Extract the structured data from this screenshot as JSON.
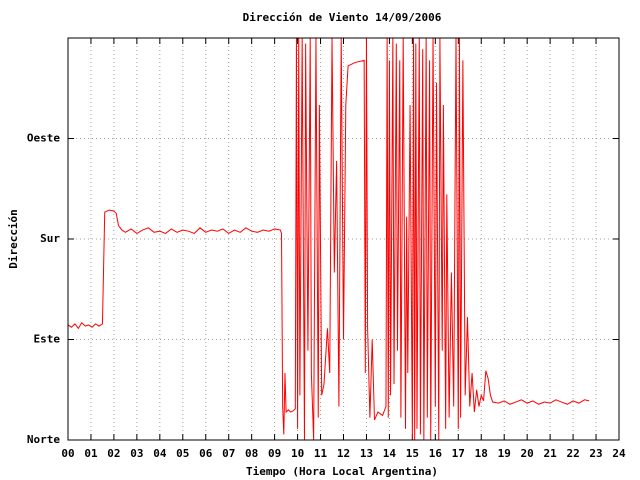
{
  "chart_data": {
    "type": "line",
    "title": "Dirección de Viento 14/09/2006",
    "xlabel": "Tiempo (Hora Local Argentina)",
    "ylabel": "Dirección",
    "grid": true,
    "xlim": [
      0,
      24
    ],
    "ylim": [
      0,
      360
    ],
    "xticks": [
      {
        "value": 0,
        "label": "00"
      },
      {
        "value": 1,
        "label": "01"
      },
      {
        "value": 2,
        "label": "02"
      },
      {
        "value": 3,
        "label": "03"
      },
      {
        "value": 4,
        "label": "04"
      },
      {
        "value": 5,
        "label": "05"
      },
      {
        "value": 6,
        "label": "06"
      },
      {
        "value": 7,
        "label": "07"
      },
      {
        "value": 8,
        "label": "08"
      },
      {
        "value": 9,
        "label": "09"
      },
      10,
      11,
      12,
      13,
      14,
      15,
      16,
      17,
      18,
      19,
      20,
      21,
      22,
      23,
      24
    ],
    "yticks": [
      {
        "value": 0,
        "label": "Norte"
      },
      {
        "value": 90,
        "label": "Este"
      },
      {
        "value": 180,
        "label": "Sur"
      },
      {
        "value": 270,
        "label": "Oeste"
      }
    ],
    "x": [
      0,
      0.15,
      0.3,
      0.45,
      0.6,
      0.75,
      0.9,
      1.05,
      1.2,
      1.35,
      1.5,
      1.6,
      1.8,
      2.0,
      2.1,
      2.2,
      2.35,
      2.5,
      2.75,
      3.0,
      3.25,
      3.5,
      3.75,
      4.0,
      4.25,
      4.5,
      4.75,
      5.0,
      5.25,
      5.5,
      5.75,
      6.0,
      6.25,
      6.5,
      6.75,
      7.0,
      7.25,
      7.5,
      7.75,
      8.0,
      8.25,
      8.5,
      8.75,
      9.0,
      9.25,
      9.3,
      9.35,
      9.4,
      9.45,
      9.5,
      9.6,
      9.7,
      9.8,
      9.9,
      9.95,
      10.0,
      10.05,
      10.1,
      10.2,
      10.3,
      10.35,
      10.45,
      10.55,
      10.6,
      10.7,
      10.8,
      10.9,
      10.95,
      11.05,
      11.15,
      11.3,
      11.4,
      11.5,
      11.6,
      11.7,
      11.8,
      11.9,
      12.0,
      12.1,
      12.2,
      12.5,
      12.9,
      12.95,
      13.0,
      13.05,
      13.15,
      13.25,
      13.35,
      13.5,
      13.7,
      13.85,
      13.9,
      13.95,
      14.0,
      14.05,
      14.15,
      14.2,
      14.3,
      14.35,
      14.45,
      14.5,
      14.6,
      14.7,
      14.75,
      14.8,
      14.9,
      15.0,
      15.05,
      15.1,
      15.15,
      15.2,
      15.3,
      15.35,
      15.45,
      15.5,
      15.6,
      15.65,
      15.75,
      15.8,
      15.9,
      16.0,
      16.05,
      16.15,
      16.2,
      16.3,
      16.35,
      16.45,
      16.5,
      16.6,
      16.7,
      16.8,
      16.9,
      17.0,
      17.05,
      17.1,
      17.2,
      17.3,
      17.4,
      17.5,
      17.6,
      17.7,
      17.8,
      17.9,
      18.0,
      18.1,
      18.2,
      18.3,
      18.4,
      18.5,
      18.75,
      19.0,
      19.25,
      19.5,
      19.75,
      20.0,
      20.25,
      20.5,
      20.75,
      21.0,
      21.25,
      21.5,
      21.75,
      22.0,
      22.25,
      22.5,
      22.7
    ],
    "series": [
      {
        "color": "#ff0000",
        "values": [
          103,
          101,
          104,
          100,
          105,
          102,
          103,
          101,
          104,
          102,
          104,
          204,
          206,
          205,
          203,
          192,
          188,
          186,
          189,
          185,
          188,
          190,
          186,
          187,
          185,
          189,
          186,
          188,
          187,
          185,
          190,
          186,
          188,
          187,
          189,
          185,
          188,
          186,
          190,
          187,
          186,
          188,
          187,
          189,
          188,
          185,
          30,
          5,
          60,
          25,
          27,
          25,
          26,
          28,
          360,
          10,
          360,
          40,
          360,
          0,
          355,
          80,
          360,
          60,
          0,
          360,
          20,
          300,
          40,
          50,
          100,
          60,
          360,
          150,
          250,
          30,
          360,
          90,
          300,
          335,
          338,
          340,
          60,
          360,
          100,
          20,
          90,
          18,
          25,
          22,
          30,
          360,
          20,
          340,
          40,
          360,
          50,
          355,
          80,
          340,
          20,
          360,
          10,
          200,
          60,
          300,
          0,
          360,
          0,
          355,
          10,
          360,
          5,
          350,
          0,
          360,
          20,
          340,
          0,
          360,
          30,
          320,
          0,
          360,
          80,
          300,
          10,
          220,
          20,
          150,
          30,
          360,
          10,
          360,
          20,
          340,
          40,
          110,
          30,
          60,
          25,
          45,
          30,
          40,
          35,
          62,
          55,
          40,
          34,
          33,
          35,
          32,
          34,
          36,
          33,
          35,
          32,
          34,
          33,
          36,
          34,
          32,
          35,
          33,
          36,
          35
        ]
      }
    ]
  }
}
